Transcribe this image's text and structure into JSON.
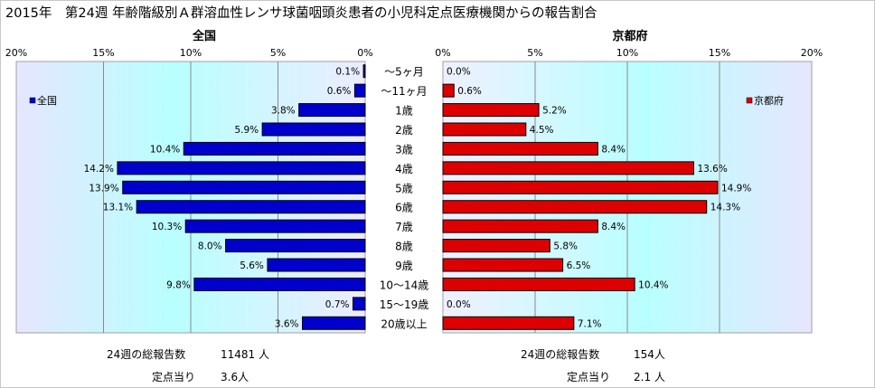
{
  "title": "2015年　第24週 年齢階級別Ａ群溶血性レンサ球菌咽頭炎患者の小児科定点医療機関からの報告割合",
  "chart_data": {
    "type": "bar",
    "orientation": "horizontal",
    "layout": "back-to-back",
    "categories": [
      "～5ヶ月",
      "～11ヶ月",
      "1歳",
      "2歳",
      "3歳",
      "4歳",
      "5歳",
      "6歳",
      "7歳",
      "8歳",
      "9歳",
      "10～14歳",
      "15～19歳",
      "20歳以上"
    ],
    "xlim": [
      0,
      20
    ],
    "ticks": [
      0,
      5,
      10,
      15,
      20
    ],
    "tick_labels": [
      "0%",
      "5%",
      "10%",
      "15%",
      "20%"
    ],
    "grid": true,
    "legend_position": "top-left / top-right",
    "series": [
      {
        "name": "全国",
        "panel_title": "全国",
        "side": "left",
        "color": "#0000cc",
        "values": [
          0.1,
          0.6,
          3.8,
          5.9,
          10.4,
          14.2,
          13.9,
          13.1,
          10.3,
          8.0,
          5.6,
          9.8,
          0.7,
          3.6
        ],
        "labels": [
          "0.1%",
          "0.6%",
          "3.8%",
          "5.9%",
          "10.4%",
          "14.2%",
          "13.9%",
          "13.1%",
          "10.3%",
          "8.0%",
          "5.6%",
          "9.8%",
          "0.7%",
          "3.6%"
        ]
      },
      {
        "name": "京都府",
        "panel_title": "京都府",
        "side": "right",
        "color": "#dd0000",
        "values": [
          0.0,
          0.6,
          5.2,
          4.5,
          8.4,
          13.6,
          14.9,
          14.3,
          8.4,
          5.8,
          6.5,
          10.4,
          0.0,
          7.1
        ],
        "labels": [
          "0.0%",
          "0.6%",
          "5.2%",
          "4.5%",
          "8.4%",
          "13.6%",
          "14.9%",
          "14.3%",
          "8.4%",
          "5.8%",
          "6.5%",
          "10.4%",
          "0.0%",
          "7.1%"
        ]
      }
    ]
  },
  "footer": {
    "national_total_label": "24週の総報告数",
    "national_total_value": "11481 人",
    "national_per_label": "定点当り",
    "national_per_value": "3.6人",
    "kyoto_total_label": "24週の総報告数",
    "kyoto_total_value": "154人",
    "kyoto_per_label": "定点当り",
    "kyoto_per_value": "2.1 人"
  }
}
